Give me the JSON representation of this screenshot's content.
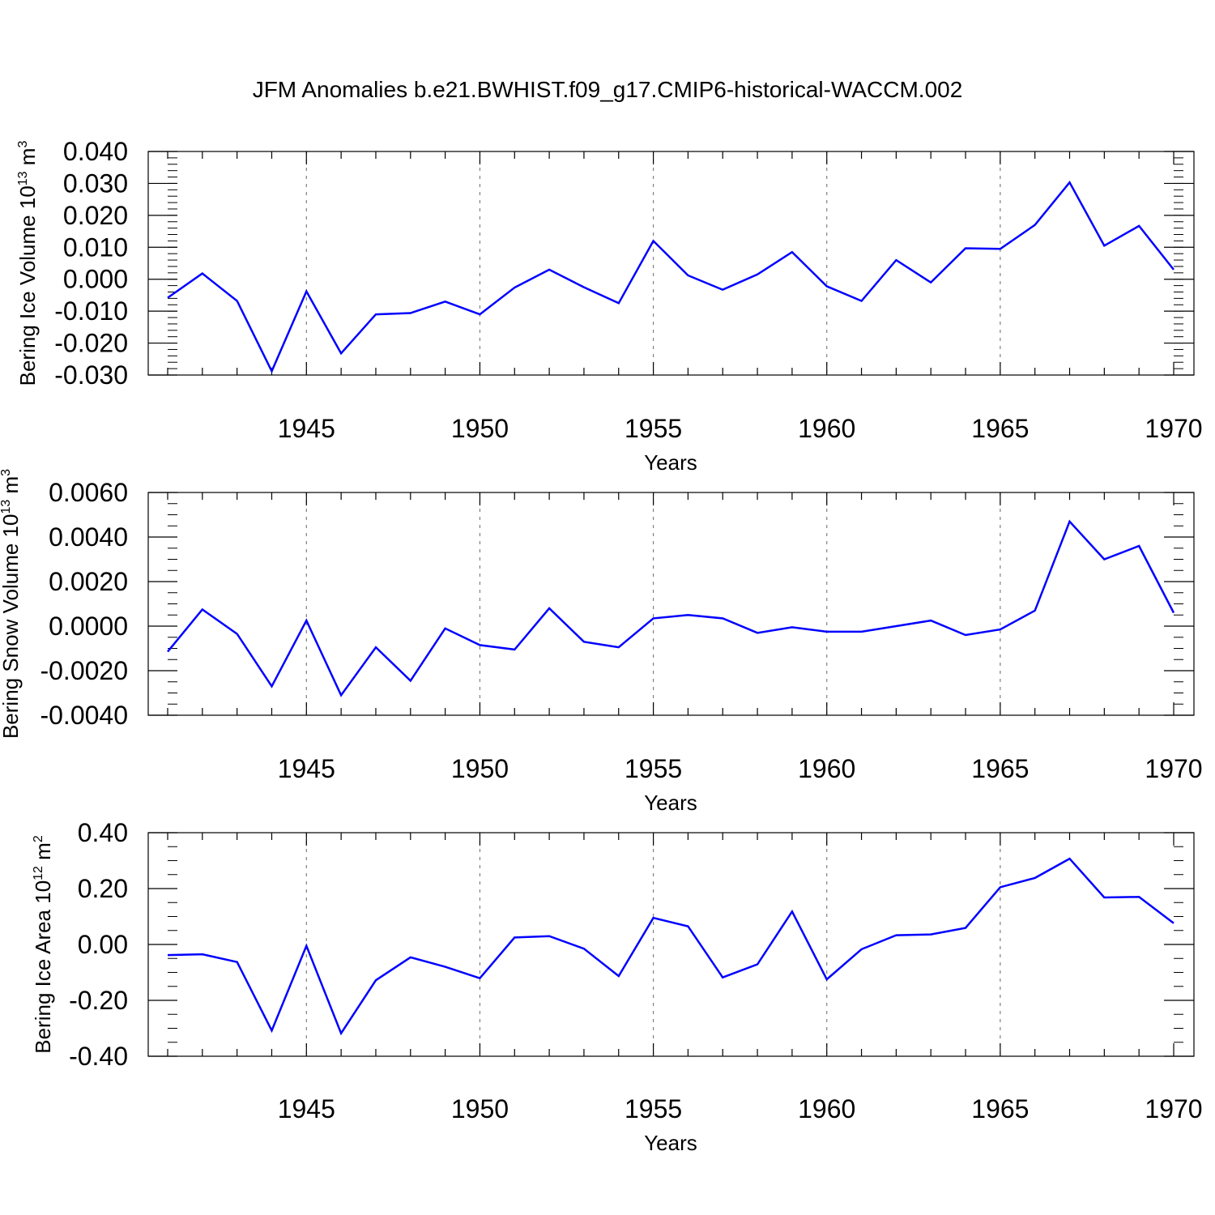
{
  "title": "JFM Anomalies b.e21.BWHIST.f09_g17.CMIP6-historical-WACCM.002",
  "line_color": "#0000ff",
  "grid_color": "#808080",
  "chart_data": [
    {
      "type": "line",
      "ylabel": "Bering Ice Volume 10",
      "ylabel_exponent": "13",
      "ylabel_unit": " m",
      "ylabel_unit_exponent": "3",
      "xlabel": "Years",
      "xlim": [
        1941,
        1970
      ],
      "ylim": [
        -0.03,
        0.04
      ],
      "x_ticks": [
        1945,
        1950,
        1955,
        1960,
        1965,
        1970
      ],
      "x_tick_labels": [
        "1945",
        "1950",
        "1955",
        "1960",
        "1965",
        "1970"
      ],
      "y_ticks": [
        -0.03,
        -0.02,
        -0.01,
        0.0,
        0.01,
        0.02,
        0.03,
        0.04
      ],
      "y_tick_labels": [
        "-0.030",
        "-0.020",
        "-0.010",
        "0.000",
        "0.010",
        "0.020",
        "0.030",
        "0.040"
      ],
      "y_minor_step": 0.002,
      "grid": "vertical dashed at major x ticks",
      "x": [
        1941,
        1942,
        1943,
        1944,
        1945,
        1946,
        1947,
        1948,
        1949,
        1950,
        1951,
        1952,
        1953,
        1954,
        1955,
        1956,
        1957,
        1958,
        1959,
        1960,
        1961,
        1962,
        1963,
        1964,
        1965,
        1966,
        1967,
        1968,
        1969,
        1970
      ],
      "y": [
        -0.0058,
        0.0018,
        -0.0068,
        -0.0288,
        -0.0038,
        -0.0232,
        -0.011,
        -0.0106,
        -0.007,
        -0.011,
        -0.0026,
        0.003,
        -0.0025,
        -0.0075,
        0.012,
        0.0012,
        -0.0033,
        0.0015,
        0.0085,
        -0.0022,
        -0.0068,
        0.006,
        -0.001,
        0.0097,
        0.0095,
        0.017,
        0.0303,
        0.0105,
        0.0167,
        0.003
      ]
    },
    {
      "type": "line",
      "ylabel": "Bering Snow Volume 10",
      "ylabel_exponent": "13",
      "ylabel_unit": " m",
      "ylabel_unit_exponent": "3",
      "xlabel": "Years",
      "xlim": [
        1941,
        1970
      ],
      "ylim": [
        -0.004,
        0.006
      ],
      "x_ticks": [
        1945,
        1950,
        1955,
        1960,
        1965,
        1970
      ],
      "x_tick_labels": [
        "1945",
        "1950",
        "1955",
        "1960",
        "1965",
        "1970"
      ],
      "y_ticks": [
        -0.004,
        -0.002,
        0.0,
        0.002,
        0.004,
        0.006
      ],
      "y_tick_labels": [
        "-0.0040",
        "-0.0020",
        "0.0000",
        "0.0020",
        "0.0040",
        "0.0060"
      ],
      "y_minor_step": 0.0005,
      "grid": "vertical dashed at major x ticks",
      "x": [
        1941,
        1942,
        1943,
        1944,
        1945,
        1946,
        1947,
        1948,
        1949,
        1950,
        1951,
        1952,
        1953,
        1954,
        1955,
        1956,
        1957,
        1958,
        1959,
        1960,
        1961,
        1962,
        1963,
        1964,
        1965,
        1966,
        1967,
        1968,
        1969,
        1970
      ],
      "y": [
        -0.00115,
        0.00075,
        -0.00035,
        -0.0027,
        0.00025,
        -0.0031,
        -0.00095,
        -0.00245,
        -0.0001,
        -0.00085,
        -0.00105,
        0.0008,
        -0.0007,
        -0.00095,
        0.00035,
        0.0005,
        0.00035,
        -0.0003,
        -5e-05,
        -0.00025,
        -0.00025,
        0.0,
        0.00025,
        -0.0004,
        -0.00015,
        0.0007,
        0.0047,
        0.003,
        0.0036,
        0.0006
      ]
    },
    {
      "type": "line",
      "ylabel": "Bering Ice Area 10",
      "ylabel_exponent": "12",
      "ylabel_unit": " m",
      "ylabel_unit_exponent": "2",
      "xlabel": "Years",
      "xlim": [
        1941,
        1970
      ],
      "ylim": [
        -0.4,
        0.4
      ],
      "x_ticks": [
        1945,
        1950,
        1955,
        1960,
        1965,
        1970
      ],
      "x_tick_labels": [
        "1945",
        "1950",
        "1955",
        "1960",
        "1965",
        "1970"
      ],
      "y_ticks": [
        -0.4,
        -0.2,
        0.0,
        0.2,
        0.4
      ],
      "y_tick_labels": [
        "-0.40",
        "-0.20",
        "0.00",
        "0.20",
        "0.40"
      ],
      "y_minor_step": 0.05,
      "grid": "vertical dashed at major x ticks",
      "x": [
        1941,
        1942,
        1943,
        1944,
        1945,
        1946,
        1947,
        1948,
        1949,
        1950,
        1951,
        1952,
        1953,
        1954,
        1955,
        1956,
        1957,
        1958,
        1959,
        1960,
        1961,
        1962,
        1963,
        1964,
        1965,
        1966,
        1967,
        1968,
        1969,
        1970
      ],
      "y": [
        -0.038,
        -0.035,
        -0.063,
        -0.308,
        -0.005,
        -0.318,
        -0.128,
        -0.046,
        -0.08,
        -0.121,
        0.025,
        0.03,
        -0.015,
        -0.113,
        0.095,
        0.065,
        -0.118,
        -0.071,
        0.118,
        -0.125,
        -0.017,
        0.033,
        0.036,
        0.059,
        0.205,
        0.238,
        0.307,
        0.168,
        0.17,
        0.076
      ]
    }
  ]
}
